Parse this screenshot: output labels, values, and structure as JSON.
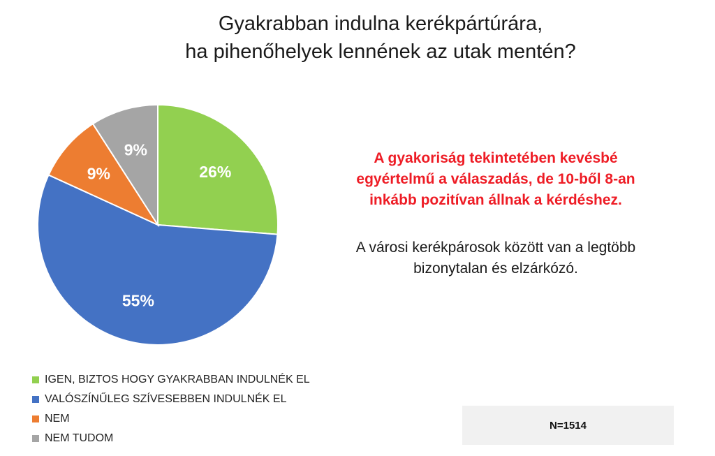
{
  "title_lines": [
    "Gyakrabban indulna kerékpártúrára,",
    "ha pihenőhelyek lennének az utak mentén?"
  ],
  "chart_data": {
    "type": "pie",
    "slices": [
      {
        "name": "IGEN, BIZTOS HOGY GYAKRABBAN INDULNÉK EL",
        "value": 26,
        "label": "26%",
        "color": "#92d050"
      },
      {
        "name": "VALÓSZÍNŰLEG SZÍVESEBBEN INDULNÉK EL",
        "value": 55,
        "label": "55%",
        "color": "#4472c4"
      },
      {
        "name": "NEM",
        "value": 9,
        "label": "9%",
        "color": "#ed7d31"
      },
      {
        "name": "NEM TUDOM",
        "value": 9,
        "label": "9%",
        "color": "#a5a5a5"
      }
    ],
    "legend_position": "bottom-left"
  },
  "notes": {
    "highlight_lines": [
      "A gyakoriság tekintetében kevésbé",
      "egyértelmű a válaszadás, de 10-ből 8-an",
      "inkább pozitívan állnak a kérdéshez."
    ],
    "plain_lines": [
      "A városi kerékpárosok között van a legtöbb",
      "bizonytalan és elzárkózó."
    ]
  },
  "sample_size": "N=1514"
}
